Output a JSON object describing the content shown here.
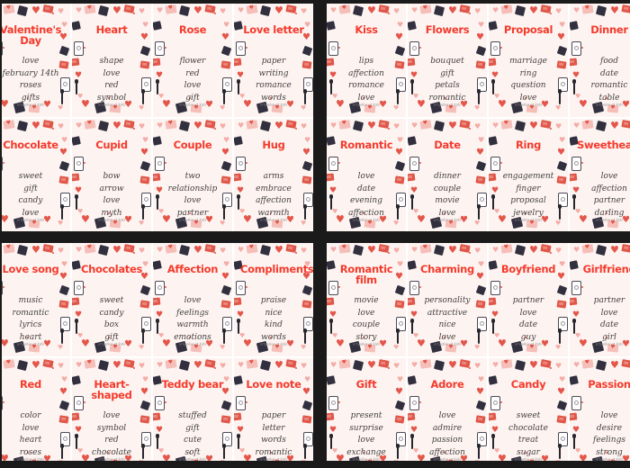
{
  "watermark": "artquiles at kids",
  "colors": {
    "title_accent": "#f43a2b",
    "word_text": "#44413e",
    "card_background": "#fdf4f2",
    "sheet_gap": "#ffffff",
    "frame_black": "#1a1a1a",
    "heart_red": "#e4564a",
    "heart_pink": "#f4aca6",
    "gift_dark": "#32303f"
  },
  "sheets": [
    {
      "name": "top-left",
      "cards": [
        {
          "title": "Valentine's Day",
          "words": [
            "love",
            "february 14th",
            "roses",
            "gifts"
          ]
        },
        {
          "title": "Heart",
          "words": [
            "shape",
            "love",
            "red",
            "symbol"
          ]
        },
        {
          "title": "Rose",
          "words": [
            "flower",
            "red",
            "love",
            "gift"
          ]
        },
        {
          "title": "Love letter",
          "words": [
            "paper",
            "writing",
            "romance",
            "words"
          ]
        },
        {
          "title": "Chocolate",
          "words": [
            "sweet",
            "gift",
            "candy",
            "love"
          ]
        },
        {
          "title": "Cupid",
          "words": [
            "bow",
            "arrow",
            "love",
            "myth"
          ]
        },
        {
          "title": "Couple",
          "words": [
            "two",
            "relationship",
            "love",
            "partner"
          ]
        },
        {
          "title": "Hug",
          "words": [
            "arms",
            "embrace",
            "affection",
            "warmth"
          ]
        }
      ]
    },
    {
      "name": "top-right",
      "cards": [
        {
          "title": "Kiss",
          "words": [
            "lips",
            "affection",
            "romance",
            "love"
          ]
        },
        {
          "title": "Flowers",
          "words": [
            "bouquet",
            "gift",
            "petals",
            "romantic"
          ]
        },
        {
          "title": "Proposal",
          "words": [
            "marriage",
            "ring",
            "question",
            "love"
          ]
        },
        {
          "title": "Dinner",
          "words": [
            "food",
            "date",
            "romantic",
            "table"
          ]
        },
        {
          "title": "Romantic",
          "words": [
            "love",
            "date",
            "evening",
            "affection"
          ]
        },
        {
          "title": "Date",
          "words": [
            "dinner",
            "couple",
            "movie",
            "love"
          ]
        },
        {
          "title": "Ring",
          "words": [
            "engagement",
            "finger",
            "proposal",
            "jewelry"
          ]
        },
        {
          "title": "Sweetheart",
          "words": [
            "love",
            "affection",
            "partner",
            "darling"
          ]
        }
      ]
    },
    {
      "name": "bottom-left",
      "cards": [
        {
          "title": "Love song",
          "words": [
            "music",
            "romantic",
            "lyrics",
            "heart"
          ]
        },
        {
          "title": "Chocolates",
          "words": [
            "sweet",
            "candy",
            "box",
            "gift"
          ]
        },
        {
          "title": "Affection",
          "words": [
            "love",
            "feelings",
            "warmth",
            "emotions"
          ]
        },
        {
          "title": "Compliments",
          "words": [
            "praise",
            "nice",
            "kind",
            "words"
          ]
        },
        {
          "title": "Red",
          "words": [
            "color",
            "love",
            "heart",
            "roses"
          ]
        },
        {
          "title": "Heart-shaped",
          "words": [
            "love",
            "symbol",
            "red",
            "chocolate"
          ]
        },
        {
          "title": "Teddy bear",
          "words": [
            "stuffed",
            "gift",
            "cute",
            "soft"
          ]
        },
        {
          "title": "Love note",
          "words": [
            "paper",
            "letter",
            "words",
            "romantic"
          ]
        }
      ]
    },
    {
      "name": "bottom-right",
      "cards": [
        {
          "title": "Romantic film",
          "words": [
            "movie",
            "love",
            "couple",
            "story"
          ]
        },
        {
          "title": "Charming",
          "words": [
            "personality",
            "attractive",
            "nice",
            "love"
          ]
        },
        {
          "title": "Boyfriend",
          "words": [
            "partner",
            "love",
            "date",
            "guy"
          ]
        },
        {
          "title": "Girlfriend",
          "words": [
            "partner",
            "love",
            "date",
            "girl"
          ]
        },
        {
          "title": "Gift",
          "words": [
            "present",
            "surprise",
            "love",
            "exchange"
          ]
        },
        {
          "title": "Adore",
          "words": [
            "love",
            "admire",
            "passion",
            "affection"
          ]
        },
        {
          "title": "Candy",
          "words": [
            "sweet",
            "chocolate",
            "treat",
            "sugar"
          ]
        },
        {
          "title": "Passion",
          "words": [
            "love",
            "desire",
            "feelings",
            "strong"
          ]
        }
      ]
    }
  ]
}
